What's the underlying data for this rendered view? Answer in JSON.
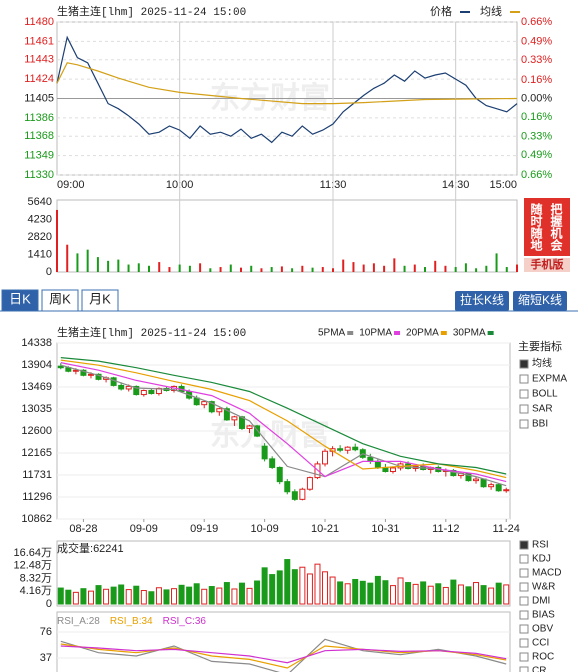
{
  "watermark": "东方财富",
  "ad": {
    "col1": "随时随地",
    "col2": "把握机会",
    "button": "手机版"
  },
  "tabs": [
    "日K",
    "周K",
    "月K"
  ],
  "buttons": [
    "拉长K线",
    "缩短K线"
  ],
  "main_indicators": {
    "title": "主要指标",
    "items": [
      "均线",
      "EXPMA",
      "BOLL",
      "SAR",
      "BBI"
    ]
  },
  "sub_indicators": {
    "items": [
      "RSI",
      "KDJ",
      "MACD",
      "W&R",
      "DMI",
      "BIAS",
      "OBV",
      "CCI",
      "ROC",
      "CR"
    ]
  },
  "chart_data": [
    {
      "type": "line",
      "title": "生猪主连[lhm] 2025-11-24 15:00",
      "xlim": [
        0,
        225
      ],
      "xticks": [
        {
          "value": 0,
          "label": "09:00"
        },
        {
          "value": 60,
          "label": "10:00"
        },
        {
          "value": 135,
          "label": "11:30"
        },
        {
          "value": 195,
          "label": "14:30"
        },
        {
          "value": 225,
          "label": "15:00"
        }
      ],
      "ylim": [
        11330,
        11480
      ],
      "yticks": [
        11480,
        11461,
        11443,
        11424,
        11405,
        11386,
        11368,
        11349,
        11330
      ],
      "y2lim": [
        -0.66,
        0.66
      ],
      "y2ticks": [
        {
          "value": 0.66,
          "label": "0.66%"
        },
        {
          "value": 0.49,
          "label": "0.49%"
        },
        {
          "value": 0.33,
          "label": "0.33%"
        },
        {
          "value": 0.16,
          "label": "0.16%"
        },
        {
          "value": 0,
          "label": "0.00%"
        },
        {
          "value": -0.16,
          "label": "0.16%"
        },
        {
          "value": -0.33,
          "label": "0.33%"
        },
        {
          "value": -0.49,
          "label": "0.49%"
        },
        {
          "value": -0.66,
          "label": "0.66%"
        }
      ],
      "grid": true,
      "legend": "top-right",
      "series": [
        {
          "name": "价格",
          "color": "#1c3f73",
          "x": [
            0,
            5,
            10,
            15,
            20,
            25,
            30,
            35,
            40,
            45,
            50,
            55,
            60,
            65,
            70,
            75,
            80,
            85,
            90,
            95,
            100,
            105,
            110,
            115,
            120,
            125,
            130,
            135,
            140,
            145,
            150,
            155,
            160,
            165,
            170,
            175,
            180,
            185,
            190,
            195,
            200,
            205,
            210,
            215,
            220,
            225
          ],
          "values": [
            11420,
            11465,
            11445,
            11440,
            11420,
            11400,
            11395,
            11388,
            11380,
            11370,
            11372,
            11378,
            11374,
            11366,
            11378,
            11370,
            11372,
            11368,
            11375,
            11366,
            11370,
            11362,
            11372,
            11368,
            11378,
            11370,
            11374,
            11380,
            11392,
            11400,
            11408,
            11415,
            11420,
            11428,
            11422,
            11432,
            11425,
            11428,
            11430,
            11424,
            11418,
            11405,
            11398,
            11395,
            11392,
            11400
          ]
        },
        {
          "name": "均线",
          "color": "#d4a017",
          "x": [
            0,
            5,
            10,
            20,
            30,
            45,
            60,
            90,
            120,
            135,
            150,
            180,
            225
          ],
          "values": [
            11420,
            11440,
            11438,
            11432,
            11425,
            11416,
            11411,
            11405,
            11400,
            11400,
            11401,
            11404,
            11405
          ]
        }
      ]
    },
    {
      "type": "bar",
      "ylim": [
        0,
        5640
      ],
      "yticks": [
        0,
        1410,
        2820,
        4230,
        5640
      ],
      "x": [
        0,
        5,
        10,
        15,
        20,
        25,
        30,
        35,
        40,
        45,
        50,
        55,
        60,
        65,
        70,
        75,
        80,
        85,
        90,
        95,
        100,
        105,
        110,
        115,
        120,
        125,
        130,
        135,
        140,
        145,
        150,
        155,
        160,
        165,
        170,
        175,
        180,
        185,
        190,
        195,
        200,
        205,
        210,
        215,
        220,
        225
      ],
      "values": [
        5000,
        2200,
        1500,
        1800,
        1200,
        900,
        1000,
        600,
        700,
        500,
        800,
        400,
        600,
        500,
        700,
        300,
        400,
        600,
        350,
        500,
        300,
        400,
        450,
        300,
        500,
        350,
        400,
        300,
        1000,
        800,
        600,
        700,
        500,
        1100,
        500,
        600,
        400,
        900,
        500,
        400,
        700,
        300,
        500,
        1500,
        400,
        600
      ],
      "up_color": "#e02020",
      "down_color": "#1a9a1a"
    },
    {
      "type": "candlestick",
      "title": "生猪主连[lhm] 2025-11-24 15:00",
      "categories": [
        null,
        null,
        null,
        "08-28",
        null,
        null,
        null,
        null,
        null,
        null,
        null,
        "09-09",
        null,
        null,
        null,
        null,
        null,
        null,
        null,
        "09-19",
        null,
        null,
        null,
        null,
        null,
        null,
        null,
        "10-09",
        null,
        null,
        null,
        null,
        null,
        null,
        null,
        "10-21",
        null,
        null,
        null,
        null,
        null,
        null,
        null,
        "10-31",
        null,
        null,
        null,
        null,
        null,
        null,
        null,
        "11-12",
        null,
        null,
        null,
        null,
        null,
        null,
        null,
        "11-24"
      ],
      "ylim": [
        10862,
        14338
      ],
      "yticks": [
        14338,
        13904,
        13469,
        13035,
        12600,
        12165,
        11731,
        11296,
        10862
      ],
      "up_color": "#e02020",
      "down_color": "#1a9a1a",
      "candles": [
        [
          13880,
          13940,
          13820,
          13850
        ],
        [
          13850,
          13880,
          13760,
          13780
        ],
        [
          13780,
          13840,
          13720,
          13800
        ],
        [
          13800,
          13820,
          13680,
          13700
        ],
        [
          13700,
          13760,
          13640,
          13720
        ],
        [
          13720,
          13740,
          13600,
          13620
        ],
        [
          13620,
          13680,
          13560,
          13650
        ],
        [
          13650,
          13670,
          13480,
          13500
        ],
        [
          13500,
          13560,
          13400,
          13430
        ],
        [
          13430,
          13520,
          13380,
          13480
        ],
        [
          13480,
          13500,
          13300,
          13320
        ],
        [
          13320,
          13420,
          13280,
          13400
        ],
        [
          13400,
          13440,
          13320,
          13340
        ],
        [
          13340,
          13460,
          13300,
          13440
        ],
        [
          13440,
          13480,
          13380,
          13400
        ],
        [
          13400,
          13500,
          13360,
          13480
        ],
        [
          13480,
          13520,
          13360,
          13380
        ],
        [
          13380,
          13420,
          13220,
          13250
        ],
        [
          13250,
          13300,
          13100,
          13120
        ],
        [
          13120,
          13200,
          13050,
          13180
        ],
        [
          13180,
          13200,
          12950,
          12980
        ],
        [
          12980,
          13060,
          12900,
          13040
        ],
        [
          13040,
          13080,
          12800,
          12820
        ],
        [
          12820,
          12900,
          12700,
          12880
        ],
        [
          12880,
          12900,
          12620,
          12650
        ],
        [
          12650,
          12720,
          12560,
          12700
        ],
        [
          12700,
          12720,
          12480,
          12500
        ],
        [
          12300,
          12360,
          12000,
          12050
        ],
        [
          12050,
          12100,
          11850,
          11880
        ],
        [
          11880,
          11900,
          11550,
          11600
        ],
        [
          11600,
          11650,
          11350,
          11400
        ],
        [
          11400,
          11450,
          11220,
          11250
        ],
        [
          11250,
          11480,
          11230,
          11450
        ],
        [
          11450,
          11700,
          11420,
          11680
        ],
        [
          11680,
          12000,
          11650,
          11950
        ],
        [
          11950,
          12250,
          11900,
          12200
        ],
        [
          12200,
          12300,
          12100,
          12250
        ],
        [
          12250,
          12320,
          12180,
          12220
        ],
        [
          12220,
          12300,
          12150,
          12280
        ],
        [
          12280,
          12350,
          12200,
          12230
        ],
        [
          12230,
          12260,
          12050,
          12080
        ],
        [
          12080,
          12150,
          11950,
          12000
        ],
        [
          12000,
          12050,
          11850,
          11880
        ],
        [
          11880,
          11950,
          11780,
          11800
        ],
        [
          11800,
          11900,
          11760,
          11870
        ],
        [
          11870,
          11980,
          11820,
          11950
        ],
        [
          11950,
          12000,
          11840,
          11860
        ],
        [
          11860,
          11940,
          11800,
          11900
        ],
        [
          11900,
          11960,
          11820,
          11840
        ],
        [
          11840,
          11900,
          11760,
          11880
        ],
        [
          11880,
          11920,
          11780,
          11800
        ],
        [
          11800,
          11860,
          11700,
          11820
        ],
        [
          11820,
          11850,
          11700,
          11720
        ],
        [
          11720,
          11800,
          11660,
          11760
        ],
        [
          11760,
          11780,
          11600,
          11620
        ],
        [
          11620,
          11700,
          11560,
          11650
        ],
        [
          11650,
          11660,
          11480,
          11500
        ],
        [
          11500,
          11580,
          11440,
          11540
        ],
        [
          11540,
          11560,
          11400,
          11420
        ],
        [
          11420,
          11480,
          11380,
          11440
        ]
      ],
      "series": [
        {
          "name": "5PMA",
          "color": "#8a8a8a",
          "x": [
            0,
            5,
            10,
            15,
            20,
            25,
            30,
            35,
            40,
            45,
            50,
            55,
            59
          ],
          "values": [
            13900,
            13700,
            13450,
            13420,
            13150,
            12800,
            11900,
            11700,
            12150,
            11900,
            11850,
            11700,
            11520
          ]
        },
        {
          "name": "10PMA",
          "color": "#e040e0",
          "x": [
            0,
            5,
            10,
            15,
            20,
            25,
            30,
            35,
            40,
            45,
            50,
            55,
            59
          ],
          "values": [
            13950,
            13800,
            13600,
            13450,
            13300,
            12950,
            12350,
            11700,
            12000,
            12000,
            11850,
            11750,
            11600
          ]
        },
        {
          "name": "20PMA",
          "color": "#e8a000",
          "x": [
            0,
            5,
            10,
            15,
            20,
            25,
            30,
            35,
            40,
            45,
            50,
            55,
            59
          ],
          "values": [
            14000,
            13900,
            13750,
            13580,
            13420,
            13200,
            12800,
            12300,
            11850,
            11900,
            11950,
            11820,
            11680
          ]
        },
        {
          "name": "30PMA",
          "color": "#1a8a3a",
          "x": [
            0,
            5,
            10,
            15,
            20,
            25,
            30,
            35,
            40,
            45,
            50,
            55,
            59
          ],
          "values": [
            14050,
            13980,
            13850,
            13700,
            13560,
            13380,
            13050,
            12700,
            12350,
            12100,
            11950,
            11880,
            11750
          ]
        }
      ]
    },
    {
      "type": "bar",
      "label": "成交量:",
      "ylim": [
        0,
        166400
      ],
      "yticks": [
        {
          "value": 166400,
          "label": "16.64万"
        },
        {
          "value": 124800,
          "label": "12.48万"
        },
        {
          "value": 83200,
          "label": "8.32万"
        },
        {
          "value": 41600,
          "label": "4.16万"
        },
        0
      ],
      "values": [
        52000,
        45000,
        38000,
        50000,
        42000,
        60000,
        48000,
        55000,
        62000,
        47000,
        58000,
        44000,
        40000,
        53000,
        46000,
        50000,
        61000,
        55000,
        66000,
        48000,
        57000,
        52000,
        70000,
        49000,
        68000,
        51000,
        75000,
        118000,
        96000,
        108000,
        145000,
        112000,
        120000,
        98000,
        130000,
        105000,
        88000,
        72000,
        66000,
        80000,
        74000,
        68000,
        90000,
        76000,
        60000,
        85000,
        70000,
        64000,
        72000,
        58000,
        66000,
        54000,
        78000,
        62000,
        56000,
        70000,
        60000,
        52000,
        68000,
        62241
      ]
    },
    {
      "type": "line",
      "ylim": [
        0,
        100
      ],
      "yticks": [
        76,
        37
      ],
      "series": [
        {
          "name": "RSI_A:",
          "color": "#8a8a8a",
          "x": [
            0,
            5,
            10,
            15,
            20,
            25,
            30,
            35,
            40,
            45,
            50,
            55,
            59
          ],
          "values": [
            62,
            45,
            40,
            55,
            32,
            28,
            12,
            65,
            48,
            42,
            50,
            40,
            28
          ]
        },
        {
          "name": "RSI_B:",
          "color": "#e8a000",
          "x": [
            0,
            5,
            10,
            15,
            20,
            25,
            30,
            35,
            40,
            45,
            50,
            55,
            59
          ],
          "values": [
            58,
            50,
            45,
            52,
            40,
            35,
            22,
            55,
            50,
            45,
            48,
            42,
            34
          ]
        },
        {
          "name": "RSI_C:",
          "color": "#d030d0",
          "x": [
            0,
            5,
            10,
            15,
            20,
            25,
            30,
            35,
            40,
            45,
            50,
            55,
            59
          ],
          "values": [
            55,
            52,
            48,
            50,
            45,
            40,
            30,
            48,
            50,
            47,
            48,
            44,
            36
          ]
        }
      ]
    }
  ]
}
